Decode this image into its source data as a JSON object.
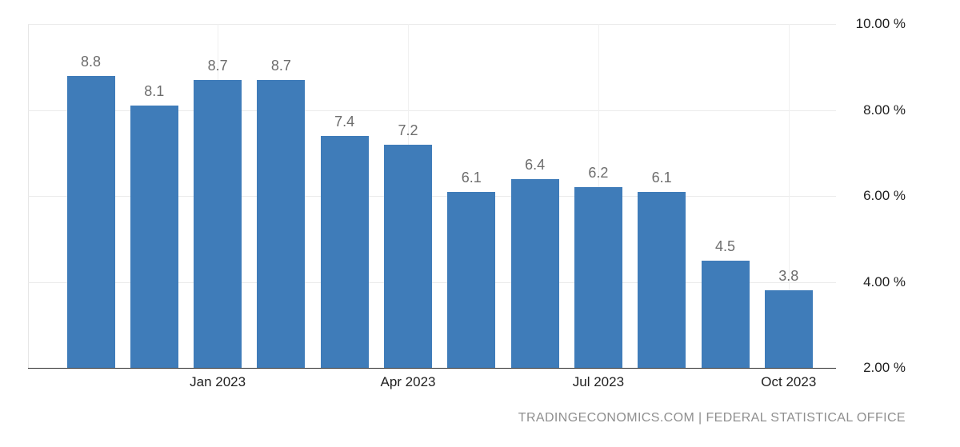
{
  "chart_data": {
    "type": "bar",
    "title": "",
    "values": [
      8.8,
      8.1,
      8.7,
      8.7,
      7.4,
      7.2,
      6.1,
      6.4,
      6.2,
      6.1,
      4.5,
      3.8
    ],
    "bar_labels": [
      "8.8",
      "8.1",
      "8.7",
      "8.7",
      "7.4",
      "7.2",
      "6.1",
      "6.4",
      "6.2",
      "6.1",
      "4.5",
      "3.8"
    ],
    "x_ticks": [
      {
        "index": 2,
        "label": "Jan 2023"
      },
      {
        "index": 5,
        "label": "Apr 2023"
      },
      {
        "index": 8,
        "label": "Jul 2023"
      },
      {
        "index": 11,
        "label": "Oct 2023"
      }
    ],
    "y_ticks": [
      {
        "value": 10,
        "label": "10.00 %"
      },
      {
        "value": 8,
        "label": "8.00 %"
      },
      {
        "value": 6,
        "label": "6.00 %"
      },
      {
        "value": 4,
        "label": "4.00 %"
      },
      {
        "value": 2,
        "label": "2.00 %"
      }
    ],
    "ylim": [
      2,
      10
    ],
    "grid": true,
    "legend": "none",
    "bar_color": "#3f7cb9",
    "source": "TRADINGECONOMICS.COM | FEDERAL STATISTICAL OFFICE"
  }
}
